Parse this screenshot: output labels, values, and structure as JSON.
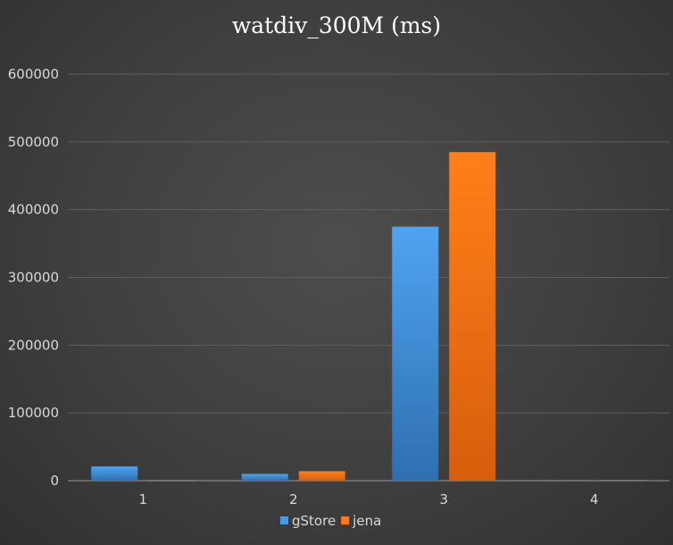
{
  "chart_data": {
    "type": "bar",
    "title": "watdiv_300M (ms)",
    "xlabel": "",
    "ylabel": "",
    "categories": [
      "1",
      "2",
      "3",
      "4"
    ],
    "series": [
      {
        "name": "gStore",
        "color": "#4a9ae6",
        "values": [
          21000,
          10000,
          375000,
          500
        ]
      },
      {
        "name": "jena",
        "color": "#ff7a1a",
        "values": [
          500,
          14000,
          485000,
          300
        ]
      }
    ],
    "ylim": [
      0,
      600000
    ],
    "yticks": [
      "0",
      "100000",
      "200000",
      "300000",
      "400000",
      "500000",
      "600000"
    ],
    "grid": true,
    "legend_position": "bottom"
  }
}
